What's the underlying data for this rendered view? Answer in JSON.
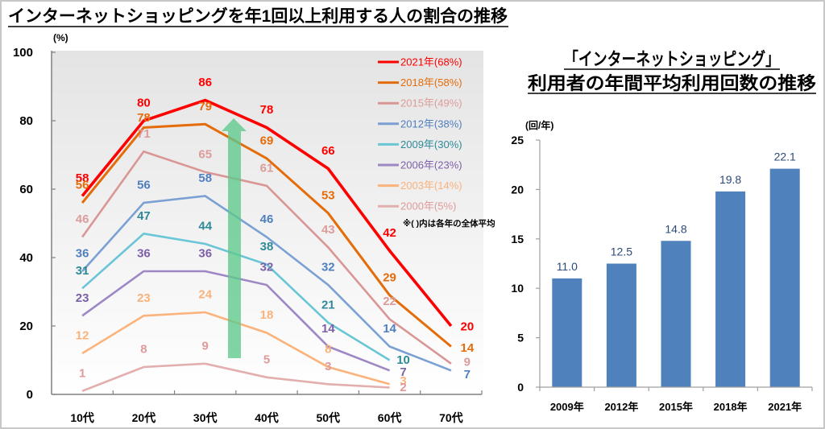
{
  "chart_data": [
    {
      "type": "line",
      "title": "インターネットショッピングを年1回以上利用する人の割合の推移",
      "xlabel": "",
      "ylabel": "(%)",
      "categories": [
        "10代",
        "20代",
        "30代",
        "40代",
        "50代",
        "60代",
        "70代"
      ],
      "ylim": [
        0,
        100
      ],
      "yticks": [
        0,
        20,
        40,
        60,
        80,
        100
      ],
      "grid": false,
      "legend_position": "top-right",
      "note": "※( )内は各年の全体平均",
      "series": [
        {
          "name": "2021年(68%)",
          "year_key": "2021",
          "color": "#ff0000",
          "label_color": "#ff0000",
          "values": [
            58,
            80,
            86,
            78,
            66,
            42,
            20
          ]
        },
        {
          "name": "2018年(58%)",
          "year_key": "2018",
          "color": "#e46c0a",
          "label_color": "#e46c0a",
          "values": [
            56,
            78,
            79,
            69,
            53,
            29,
            14
          ]
        },
        {
          "name": "2015年(49%)",
          "year_key": "2015",
          "color": "#d99694",
          "label_color": "#dc9c9a",
          "values": [
            46,
            71,
            65,
            61,
            43,
            22,
            9
          ]
        },
        {
          "name": "2012年(38%)",
          "year_key": "2012",
          "color": "#7aa0d4",
          "label_color": "#4f7fbf",
          "values": [
            36,
            56,
            58,
            46,
            32,
            14,
            7
          ]
        },
        {
          "name": "2009年(30%)",
          "year_key": "2009",
          "color": "#6ac6d6",
          "label_color": "#2e8a99",
          "values": [
            31,
            47,
            44,
            38,
            21,
            10,
            null
          ]
        },
        {
          "name": "2006年(23%)",
          "year_key": "2006",
          "color": "#9d87c4",
          "label_color": "#7d60a8",
          "values": [
            23,
            36,
            36,
            32,
            14,
            7,
            null
          ]
        },
        {
          "name": "2003年(14%)",
          "year_key": "2003",
          "color": "#fbb27b",
          "label_color": "#f9b27c",
          "values": [
            12,
            23,
            24,
            18,
            8,
            3,
            null
          ]
        },
        {
          "name": "2000年(5%)",
          "year_key": "2000",
          "color": "#e2aeae",
          "label_color": "#e09a9a",
          "values": [
            1,
            8,
            9,
            5,
            3,
            2,
            null
          ]
        }
      ],
      "annotations": [
        {
          "type": "arrow",
          "direction": "up",
          "meaning": "increasing trend",
          "color": "#5ec98c"
        }
      ]
    },
    {
      "type": "bar",
      "title": "「インターネットショッピング」利用者の年間平均利用回数の推移",
      "title_lines": [
        "「インターネットショッピング」",
        "利用者の年間平均利用回数の推移"
      ],
      "xlabel": "",
      "ylabel": "(回/年)",
      "categories": [
        "2009年",
        "2012年",
        "2015年",
        "2018年",
        "2021年"
      ],
      "values": [
        11.0,
        12.5,
        14.8,
        19.8,
        22.1
      ],
      "value_labels": [
        "11.0",
        "12.5",
        "14.8",
        "19.8",
        "22.1"
      ],
      "ylim": [
        0,
        25
      ],
      "yticks": [
        0,
        5,
        10,
        15,
        20,
        25
      ],
      "grid": false,
      "bar_color": "#4f81bd"
    }
  ]
}
